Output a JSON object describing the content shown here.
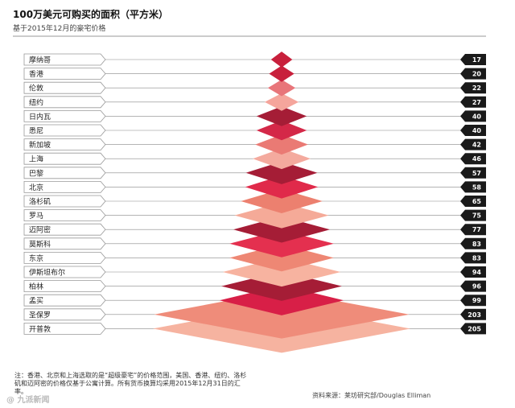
{
  "header": {
    "title": "100万美元可购买的面积（平方米）",
    "subtitle": "基于2015年12月的豪宅价格"
  },
  "chart_data": {
    "type": "bar",
    "title": "100万美元可购买的面积（平方米）",
    "subtitle": "基于2015年12月的豪宅价格",
    "orientation": "horizontal-pyramid",
    "categories": [
      "摩纳哥",
      "香港",
      "伦敦",
      "纽约",
      "日内瓦",
      "悉尼",
      "新加坡",
      "上海",
      "巴黎",
      "北京",
      "洛杉矶",
      "罗马",
      "迈阿密",
      "莫斯科",
      "东京",
      "伊斯坦布尔",
      "柏林",
      "孟买",
      "圣保罗",
      "开普敦"
    ],
    "values": [
      17,
      20,
      22,
      27,
      40,
      40,
      42,
      46,
      57,
      58,
      65,
      75,
      77,
      83,
      83,
      94,
      96,
      99,
      203,
      205
    ],
    "colors": [
      "#c8203c",
      "#c8203c",
      "#e8757a",
      "#f5a59c",
      "#a51d36",
      "#d42848",
      "#ea7a74",
      "#f4aa9e",
      "#a51d36",
      "#e02a4a",
      "#ec806f",
      "#f5aa98",
      "#a51d36",
      "#e4304f",
      "#ee8774",
      "#f7b3a0",
      "#a51d36",
      "#d81f47",
      "#ef8c7a",
      "#f6b3a0"
    ],
    "legend": "none",
    "grid": false
  },
  "footer": {
    "note": "注：香港、北京和上海选取的是“超级豪宅”的价格范围，美国、香港、纽约、洛杉矶和迈阿密的价格仅基于公寓计算。所有货币换算均采用2015年12月31日的汇率。",
    "source": "资料来源：莱坊研究部/Douglas Elliman",
    "watermark": "@ 九派新闻"
  }
}
